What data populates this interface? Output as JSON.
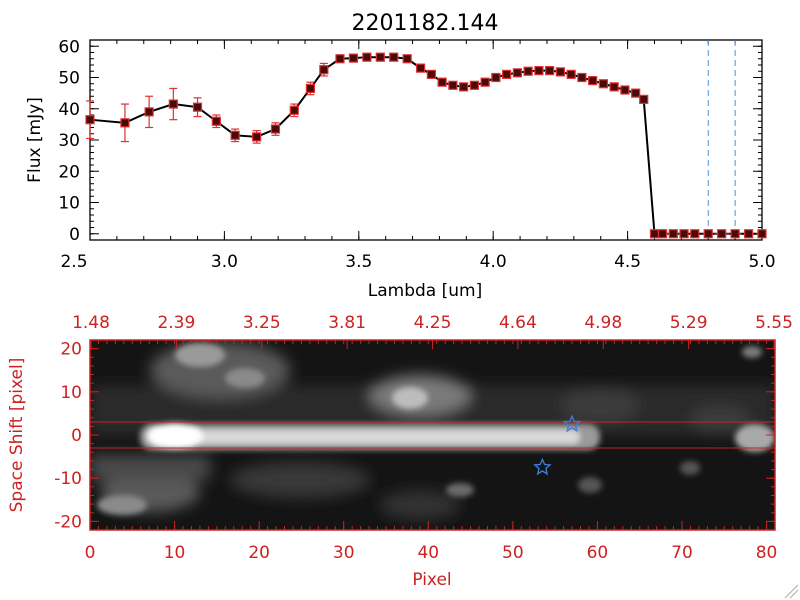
{
  "colors": {
    "axis_black": "#000000",
    "accent_red": "#cc2222",
    "marker_red": "#e03030",
    "marker_dark": "#4a0a0a",
    "line": "#000000",
    "dashed_blue": "#4a90d9",
    "star_blue": "#3a7bd5"
  },
  "chart_data": [
    {
      "type": "line",
      "title": "2201182.144",
      "xlabel": "Lambda [um]",
      "ylabel": "Flux [mJy]",
      "xlim": [
        2.5,
        5.0
      ],
      "ylim": [
        -2,
        62
      ],
      "xticks": [
        "2.5",
        "3.0",
        "3.5",
        "4.0",
        "4.5",
        "5.0"
      ],
      "yticks": [
        "0",
        "10",
        "20",
        "30",
        "40",
        "50",
        "60"
      ],
      "grid": false,
      "series": [
        {
          "x": [
            2.5,
            2.63,
            2.72,
            2.81,
            2.9,
            2.97,
            3.04,
            3.12,
            3.19,
            3.26,
            3.32,
            3.37,
            3.43,
            3.48,
            3.53,
            3.58,
            3.63,
            3.68,
            3.73,
            3.77,
            3.81,
            3.85,
            3.89,
            3.93,
            3.97,
            4.01,
            4.05,
            4.09,
            4.13,
            4.17,
            4.21,
            4.25,
            4.29,
            4.33,
            4.37,
            4.41,
            4.45,
            4.49,
            4.53,
            4.56,
            4.6,
            4.63,
            4.67,
            4.71,
            4.75,
            4.8,
            4.85,
            4.9,
            4.95,
            5.0
          ],
          "y": [
            36.5,
            35.5,
            39,
            41.5,
            40.5,
            36,
            31.5,
            31,
            33.5,
            39.5,
            46.5,
            52.5,
            56,
            56.2,
            56.5,
            56.5,
            56.5,
            56,
            53,
            51,
            48.5,
            47.5,
            47,
            47.5,
            48.5,
            50,
            51,
            51.5,
            52,
            52.2,
            52.2,
            51.8,
            51,
            50,
            49,
            48,
            47,
            46,
            45,
            43,
            0,
            0,
            0,
            0,
            0,
            0,
            0,
            0,
            0,
            0
          ],
          "error": [
            6,
            6,
            5,
            5,
            3,
            2,
            2,
            2,
            2,
            2,
            2,
            2,
            1,
            1,
            1,
            1,
            1,
            1,
            1,
            1,
            1,
            1,
            1,
            1,
            1,
            1,
            1,
            1,
            1,
            1,
            1,
            1,
            1,
            1,
            1,
            1,
            1,
            1,
            1,
            1,
            0,
            0,
            0,
            0,
            0,
            0,
            0,
            0,
            0,
            0
          ]
        }
      ],
      "vertical_dashed_lines_x": [
        4.8,
        4.9
      ]
    },
    {
      "type": "heatmap",
      "xlabel": "Pixel",
      "ylabel": "Space Shift [pixel]",
      "xlim": [
        0,
        81
      ],
      "ylim": [
        -22,
        22
      ],
      "xticks": [
        "0",
        "10",
        "20",
        "30",
        "40",
        "50",
        "60",
        "70",
        "80"
      ],
      "yticks": [
        "-20",
        "-10",
        "0",
        "10",
        "20"
      ],
      "top_axis_ticks": [
        "1.48",
        "2.39",
        "3.25",
        "3.81",
        "4.25",
        "4.64",
        "4.98",
        "5.29",
        "5.55"
      ],
      "horizontal_lines_y": [
        3,
        -3
      ],
      "stars": [
        {
          "x": 57,
          "y": 2.5
        },
        {
          "x": 53.5,
          "y": -7.5
        }
      ]
    }
  ]
}
